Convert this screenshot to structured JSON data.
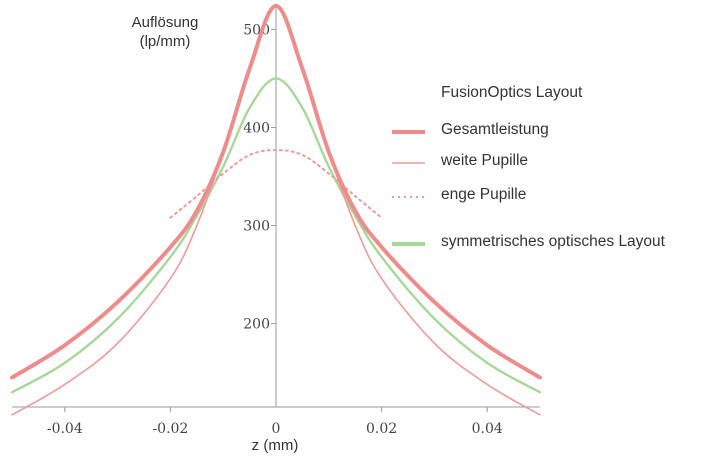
{
  "chart_data": {
    "type": "line",
    "ylabel_line1": "Auflösung",
    "ylabel_line2": "(lp/mm)",
    "xlabel": "z (mm)",
    "legend_title": "FusionOptics Layout",
    "xlim": [
      -0.05,
      0.05
    ],
    "ylim": [
      115,
      530
    ],
    "xticks": [
      -0.04,
      -0.02,
      0.02,
      0.04
    ],
    "xtick_labels": [
      "-0.04",
      "-0.02",
      "0.02",
      "0.04"
    ],
    "yticks": [
      200,
      300,
      400,
      500
    ],
    "ytick_labels": [
      "200",
      "300",
      "400",
      "500"
    ],
    "series": [
      {
        "name": "Gesamtleistung",
        "color": "#ee8c8c",
        "style": "thick",
        "x": [
          -0.05,
          -0.04,
          -0.03,
          -0.02,
          -0.015,
          -0.01,
          -0.005,
          0,
          0.005,
          0.01,
          0.015,
          0.02,
          0.03,
          0.04,
          0.05
        ],
        "y": [
          145,
          178,
          222,
          278,
          315,
          375,
          460,
          524,
          460,
          375,
          315,
          278,
          222,
          178,
          145
        ]
      },
      {
        "name": "weite Pupille",
        "color": "#ee9a9a",
        "style": "thin",
        "x": [
          -0.05,
          -0.04,
          -0.03,
          -0.02,
          -0.015,
          -0.01,
          -0.005,
          0,
          0.005,
          0.01,
          0.015,
          0.02,
          0.03,
          0.04,
          0.05
        ],
        "y": [
          107,
          138,
          180,
          246,
          300,
          375,
          460,
          524,
          460,
          375,
          300,
          246,
          180,
          138,
          107
        ]
      },
      {
        "name": "enge Pupille",
        "color": "#ee9a9a",
        "style": "dotted",
        "x": [
          -0.02,
          -0.015,
          -0.01,
          -0.005,
          0,
          0.005,
          0.01,
          0.015,
          0.02
        ],
        "y": [
          308,
          330,
          353,
          372,
          377,
          372,
          353,
          330,
          308
        ]
      },
      {
        "name": "symmetrisches optisches Layout",
        "color": "#a6d89a",
        "style": "thin",
        "x": [
          -0.05,
          -0.04,
          -0.03,
          -0.02,
          -0.015,
          -0.01,
          -0.005,
          0,
          0.005,
          0.01,
          0.015,
          0.02,
          0.03,
          0.04,
          0.05
        ],
        "y": [
          130,
          160,
          205,
          268,
          310,
          360,
          420,
          450,
          420,
          360,
          310,
          268,
          205,
          160,
          130
        ]
      }
    ]
  }
}
